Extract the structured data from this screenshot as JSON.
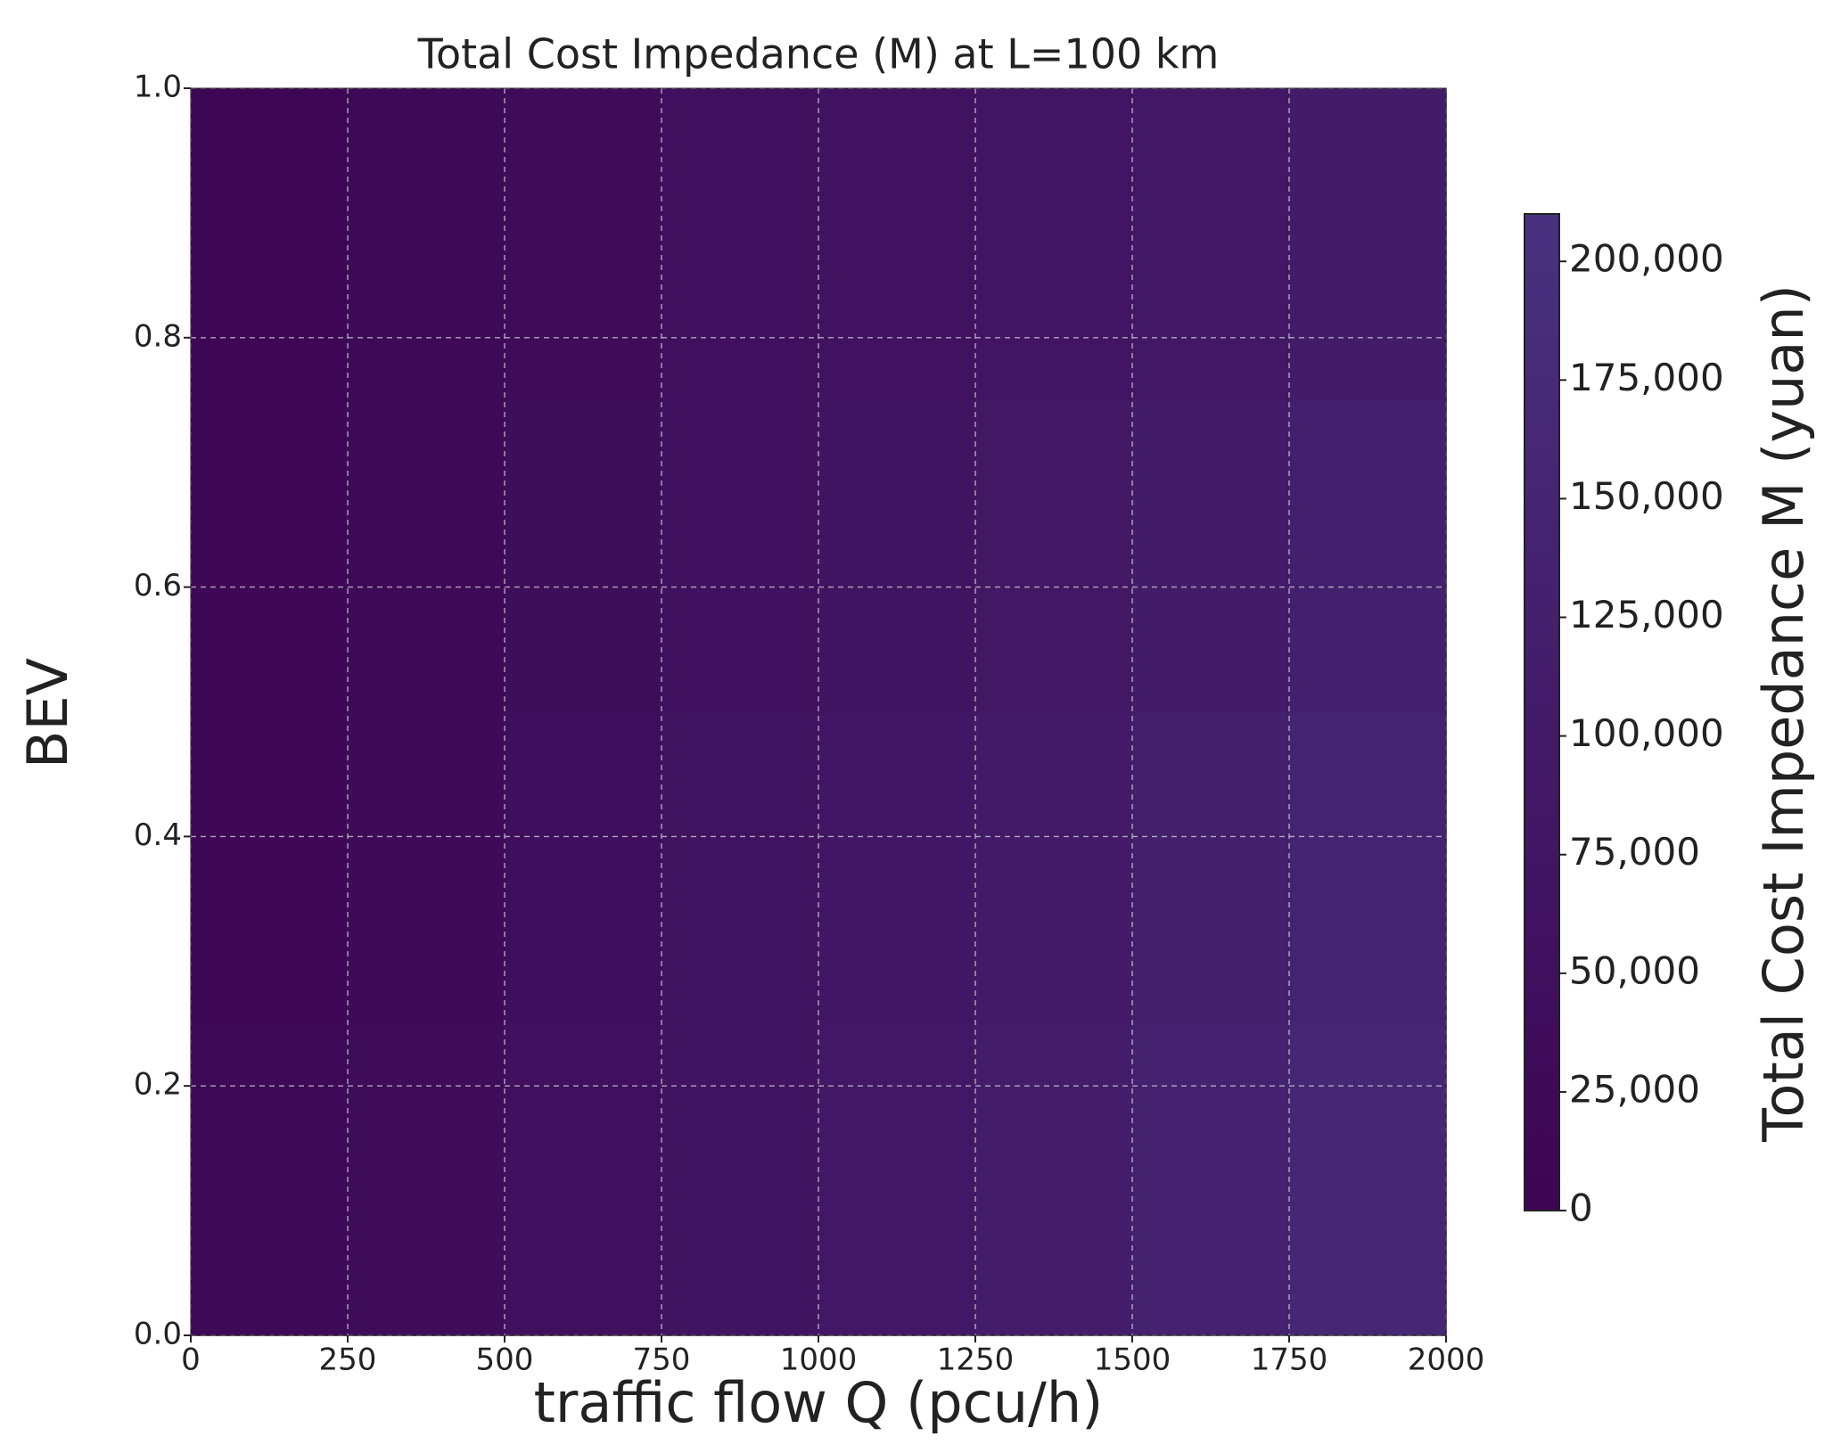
{
  "chart_data": {
    "type": "heatmap",
    "title": "Total Cost Impedance (M) at L=100 km",
    "x_label": "traffic flow Q (pcu/h)",
    "y_label": "BEV",
    "colorbar_label": "Total Cost Impedance M (yuan)",
    "x": [
      0,
      250,
      500,
      750,
      1000,
      1250,
      1500,
      1750,
      2000
    ],
    "y": [
      0,
      0.25,
      0.5,
      0.75,
      1
    ],
    "z": [
      [
        10000,
        25000,
        45000,
        65000,
        85000,
        105000,
        130000,
        155000,
        180000
      ],
      [
        9000,
        22500,
        40000,
        58000,
        76000,
        94000,
        116000,
        139000,
        161000
      ],
      [
        7500,
        20000,
        35000,
        51500,
        67500,
        83500,
        102500,
        122500,
        142500
      ],
      [
        6000,
        17500,
        30000,
        44500,
        59000,
        73000,
        89000,
        106000,
        124000
      ],
      [
        5000,
        15000,
        25000,
        38000,
        50000,
        62000,
        75000,
        90000,
        105000
      ]
    ],
    "colormap": [
      "#3d0553",
      "#48327f"
    ],
    "clim": [
      0,
      210000
    ],
    "cticks": [
      {
        "value": 0,
        "label": "0"
      },
      {
        "value": 25000,
        "label": "25,000"
      },
      {
        "value": 50000,
        "label": "50,000"
      },
      {
        "value": 75000,
        "label": "75,000"
      },
      {
        "value": 100000,
        "label": "100,000"
      },
      {
        "value": 125000,
        "label": "125,000"
      },
      {
        "value": 150000,
        "label": "150,000"
      },
      {
        "value": 175000,
        "label": "175,000"
      },
      {
        "value": 200000,
        "label": "200,000"
      }
    ],
    "xlim": [
      0,
      2000
    ],
    "xticks": [
      0,
      250,
      500,
      750,
      1000,
      1250,
      1500,
      1750,
      2000
    ],
    "ylim": [
      0,
      1
    ],
    "yticks": [
      {
        "value": 0,
        "label": "0.0"
      },
      0.2,
      0.4,
      0.6,
      0.8,
      {
        "value": 1,
        "label": "1.0"
      }
    ],
    "grid": true
  }
}
